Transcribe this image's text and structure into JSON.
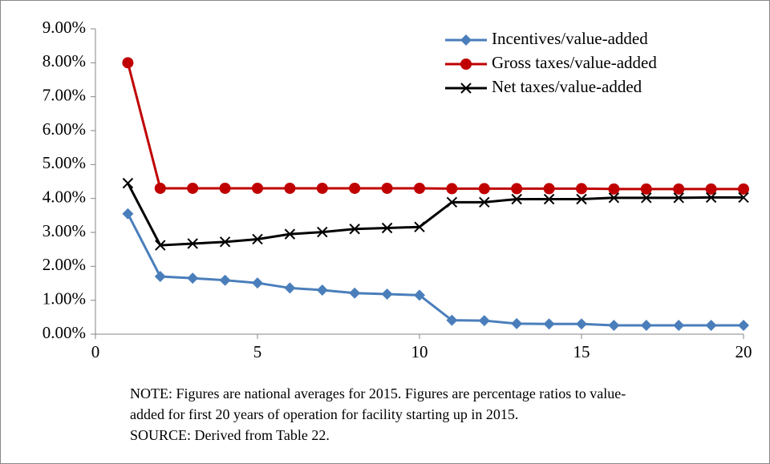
{
  "chart_data": {
    "type": "line",
    "x": [
      1,
      2,
      3,
      4,
      5,
      6,
      7,
      8,
      9,
      10,
      11,
      12,
      13,
      14,
      15,
      16,
      17,
      18,
      19,
      20
    ],
    "series": [
      {
        "name": "Incentives/value-added",
        "color": "#4a7ebb",
        "marker": "diamond",
        "values": [
          3.55,
          1.7,
          1.65,
          1.59,
          1.51,
          1.36,
          1.3,
          1.21,
          1.18,
          1.15,
          0.41,
          0.4,
          0.31,
          0.3,
          0.3,
          0.26,
          0.26,
          0.26,
          0.26,
          0.26
        ]
      },
      {
        "name": "Gross taxes/value-added",
        "color": "#c00000",
        "marker": "circle",
        "values": [
          8.0,
          4.3,
          4.3,
          4.3,
          4.3,
          4.3,
          4.3,
          4.3,
          4.3,
          4.3,
          4.29,
          4.29,
          4.29,
          4.29,
          4.29,
          4.28,
          4.28,
          4.28,
          4.28,
          4.28
        ]
      },
      {
        "name": "Net taxes/value-added",
        "color": "#000000",
        "marker": "x",
        "values": [
          4.45,
          2.62,
          2.67,
          2.72,
          2.8,
          2.95,
          3.01,
          3.1,
          3.13,
          3.16,
          3.89,
          3.89,
          3.98,
          3.98,
          3.98,
          4.02,
          4.02,
          4.02,
          4.03,
          4.03
        ]
      }
    ],
    "xlim": [
      0,
      20
    ],
    "xticks": [
      0,
      5,
      10,
      15,
      20
    ],
    "ylim": [
      0,
      9
    ],
    "yticks": [
      {
        "value": 0,
        "label": "0.00%"
      },
      {
        "value": 1,
        "label": "1.00%"
      },
      {
        "value": 2,
        "label": "2.00%"
      },
      {
        "value": 3,
        "label": "3.00%"
      },
      {
        "value": 4,
        "label": "4.00%"
      },
      {
        "value": 5,
        "label": "5.00%"
      },
      {
        "value": 6,
        "label": "6.00%"
      },
      {
        "value": 7,
        "label": "7.00%"
      },
      {
        "value": 8,
        "label": "8.00%"
      },
      {
        "value": 9,
        "label": "9.00%"
      }
    ],
    "grid": false,
    "legend": "upper right",
    "notes": [
      "NOTE: Figures are national averages for 2015. Figures are percentage ratios to value-",
      "added for first 20 years of operation for facility starting up in 2015.",
      "SOURCE: Derived from Table 22."
    ]
  }
}
